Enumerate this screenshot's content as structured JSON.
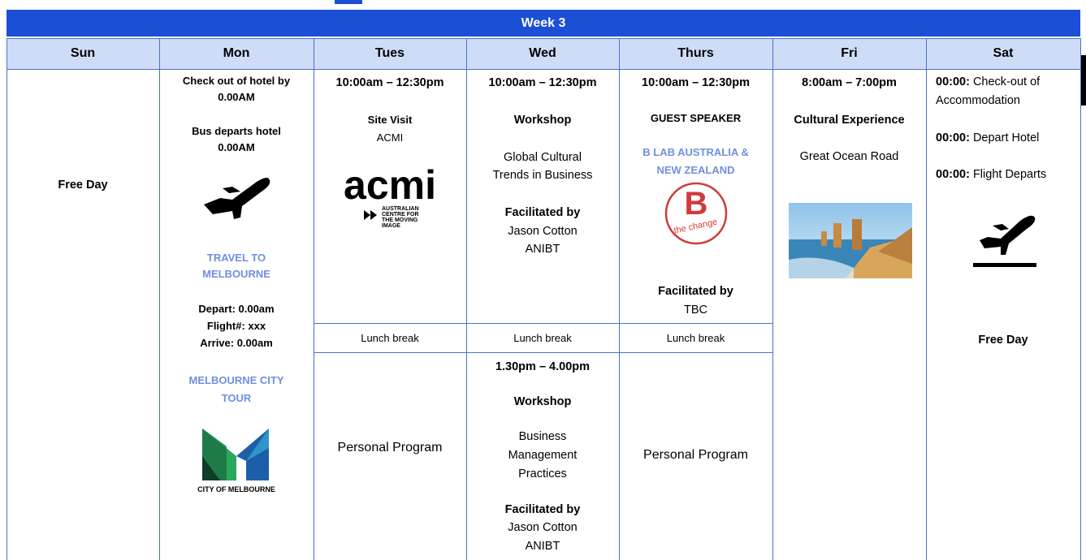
{
  "header": {
    "title": "Week 3",
    "days": [
      "Sun",
      "Mon",
      "Tues",
      "Wed",
      "Thurs",
      "Fri",
      "Sat"
    ]
  },
  "sun": {
    "note": "Free Day"
  },
  "mon": {
    "checkout": [
      "Check out of hotel by",
      "0.00AM"
    ],
    "bus": [
      "Bus departs hotel",
      "0.00AM"
    ],
    "travel": [
      "TRAVEL TO",
      "MELBOURNE"
    ],
    "depart": "Depart: 0.00am",
    "flight": "Flight#: xxx",
    "arrive": "Arrive: 0.00am",
    "tour": [
      "MELBOURNE CITY",
      "TOUR"
    ],
    "logo_text": "CITY OF MELBOURNE"
  },
  "tues": {
    "time": "10:00am – 12:30pm",
    "activity": "Site Visit",
    "venue": "ACMI",
    "logo": {
      "name": "acmi",
      "tagline": [
        "AUSTRALIAN",
        "CENTRE FOR",
        "THE MOVING",
        "IMAGE"
      ]
    },
    "lunch": "Lunch break",
    "afternoon": "Personal Program"
  },
  "wed": {
    "time": "10:00am – 12:30pm",
    "activity": "Workshop",
    "topic": [
      "Global Cultural",
      "Trends in Business"
    ],
    "facilitated": "Facilitated by",
    "facilitator": "Jason Cotton",
    "org": "ANIBT",
    "lunch": "Lunch break",
    "pm_time": "1.30pm – 4.00pm",
    "pm_activity": "Workshop",
    "pm_topic": [
      "Business",
      "Management",
      "Practices"
    ],
    "pm_facilitated": "Facilitated by",
    "pm_facilitator": "Jason Cotton",
    "pm_org": "ANIBT"
  },
  "thurs": {
    "time": "10:00am – 12:30pm",
    "activity": "GUEST SPEAKER",
    "speaker": [
      "B LAB AUSTRALIA &",
      "NEW ZEALAND"
    ],
    "logo": {
      "letter": "B",
      "tagline": "the change"
    },
    "facilitated": "Facilitated by",
    "facilitator": "TBC",
    "lunch": "Lunch break",
    "afternoon": "Personal Program"
  },
  "fri": {
    "time": "8:00am – 7:00pm",
    "activity": "Cultural Experience",
    "place": "Great Ocean Road"
  },
  "sat": {
    "items": [
      {
        "time": "00:00:",
        "text": [
          "Check-out of",
          "Accommodation"
        ]
      },
      {
        "time": "00:00:",
        "text": [
          "Depart Hotel"
        ]
      },
      {
        "time": "00:00:",
        "text": [
          "Flight Departs"
        ]
      }
    ],
    "note": "Free Day"
  }
}
